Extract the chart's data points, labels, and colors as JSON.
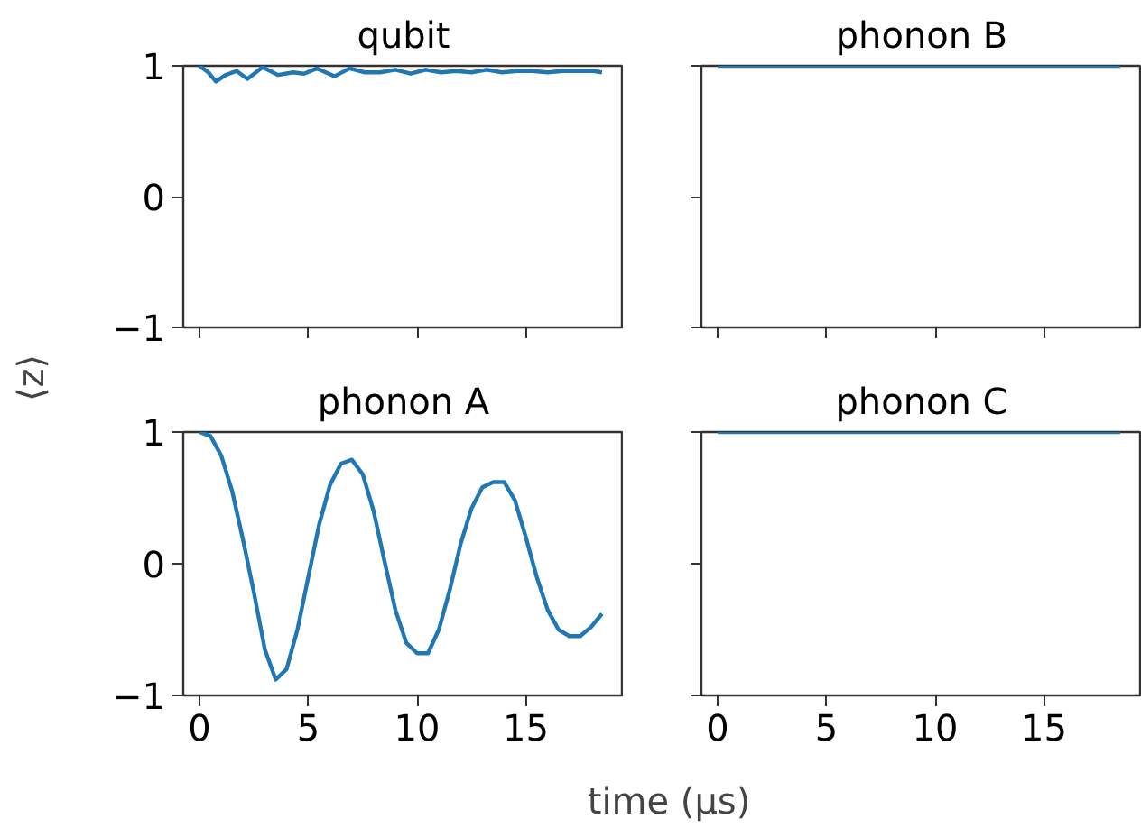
{
  "chart_data": [
    {
      "type": "line",
      "title": "qubit",
      "ylabel": "⟨z⟩",
      "tick_labels": "y",
      "grid": false,
      "xlim": [
        -0.75,
        19.5
      ],
      "ylim": [
        -1,
        1
      ],
      "xticks": [
        0,
        5,
        10,
        15
      ],
      "yticks": [
        -1,
        0,
        1
      ],
      "series": [
        {
          "color": "#1f77b4",
          "x": [
            0,
            0.4,
            0.75,
            1.2,
            1.7,
            2.2,
            2.9,
            3.6,
            4.3,
            4.8,
            5.4,
            6.2,
            6.9,
            7.6,
            8.3,
            9.0,
            9.7,
            10.4,
            11.1,
            11.8,
            12.5,
            13.2,
            13.9,
            14.6,
            15.3,
            16.0,
            16.7,
            17.4,
            18.1,
            18.5
          ],
          "values": [
            1.0,
            0.95,
            0.88,
            0.93,
            0.96,
            0.9,
            0.99,
            0.93,
            0.95,
            0.94,
            0.98,
            0.92,
            0.98,
            0.95,
            0.95,
            0.97,
            0.94,
            0.97,
            0.95,
            0.96,
            0.95,
            0.97,
            0.95,
            0.96,
            0.96,
            0.95,
            0.96,
            0.96,
            0.96,
            0.95
          ]
        }
      ]
    },
    {
      "type": "line",
      "title": "phonon B",
      "tick_labels": false,
      "grid": false,
      "xlim": [
        -0.75,
        19.5
      ],
      "ylim": [
        -1,
        1
      ],
      "xticks": [
        0,
        5,
        10,
        15
      ],
      "yticks": [
        -1,
        0,
        1
      ],
      "series": [
        {
          "color": "#1f77b4",
          "x": [
            0,
            18.5
          ],
          "values": [
            1,
            1
          ]
        }
      ]
    },
    {
      "type": "line",
      "title": "phonon A",
      "grid": false,
      "xlim": [
        -0.75,
        19.5
      ],
      "ylim": [
        -1,
        1
      ],
      "xticks": [
        0,
        5,
        10,
        15
      ],
      "yticks": [
        -1,
        0,
        1
      ],
      "series": [
        {
          "color": "#1f77b4",
          "x": [
            0,
            0.5,
            1,
            1.5,
            2,
            2.5,
            3,
            3.5,
            4,
            4.5,
            5,
            5.5,
            6,
            6.5,
            7,
            7.5,
            8,
            8.5,
            9,
            9.5,
            10,
            10.5,
            11,
            11.5,
            12,
            12.5,
            13,
            13.5,
            14,
            14.5,
            15,
            15.5,
            16,
            16.5,
            17,
            17.5,
            18,
            18.5
          ],
          "values": [
            1.0,
            0.97,
            0.82,
            0.55,
            0.18,
            -0.22,
            -0.65,
            -0.88,
            -0.8,
            -0.5,
            -0.1,
            0.3,
            0.6,
            0.76,
            0.79,
            0.68,
            0.4,
            0.02,
            -0.35,
            -0.6,
            -0.68,
            -0.68,
            -0.5,
            -0.2,
            0.15,
            0.42,
            0.58,
            0.62,
            0.62,
            0.48,
            0.2,
            -0.1,
            -0.35,
            -0.5,
            -0.55,
            -0.55,
            -0.48,
            -0.38
          ]
        }
      ]
    },
    {
      "type": "line",
      "title": "phonon C",
      "xlabel": "time (µs)",
      "tick_labels": "x",
      "grid": false,
      "xlim": [
        -0.75,
        19.5
      ],
      "ylim": [
        -1,
        1
      ],
      "xticks": [
        0,
        5,
        10,
        15
      ],
      "yticks": [
        -1,
        0,
        1
      ],
      "series": [
        {
          "color": "#1f77b4",
          "x": [
            0,
            18.5
          ],
          "values": [
            1,
            1
          ]
        }
      ]
    }
  ]
}
